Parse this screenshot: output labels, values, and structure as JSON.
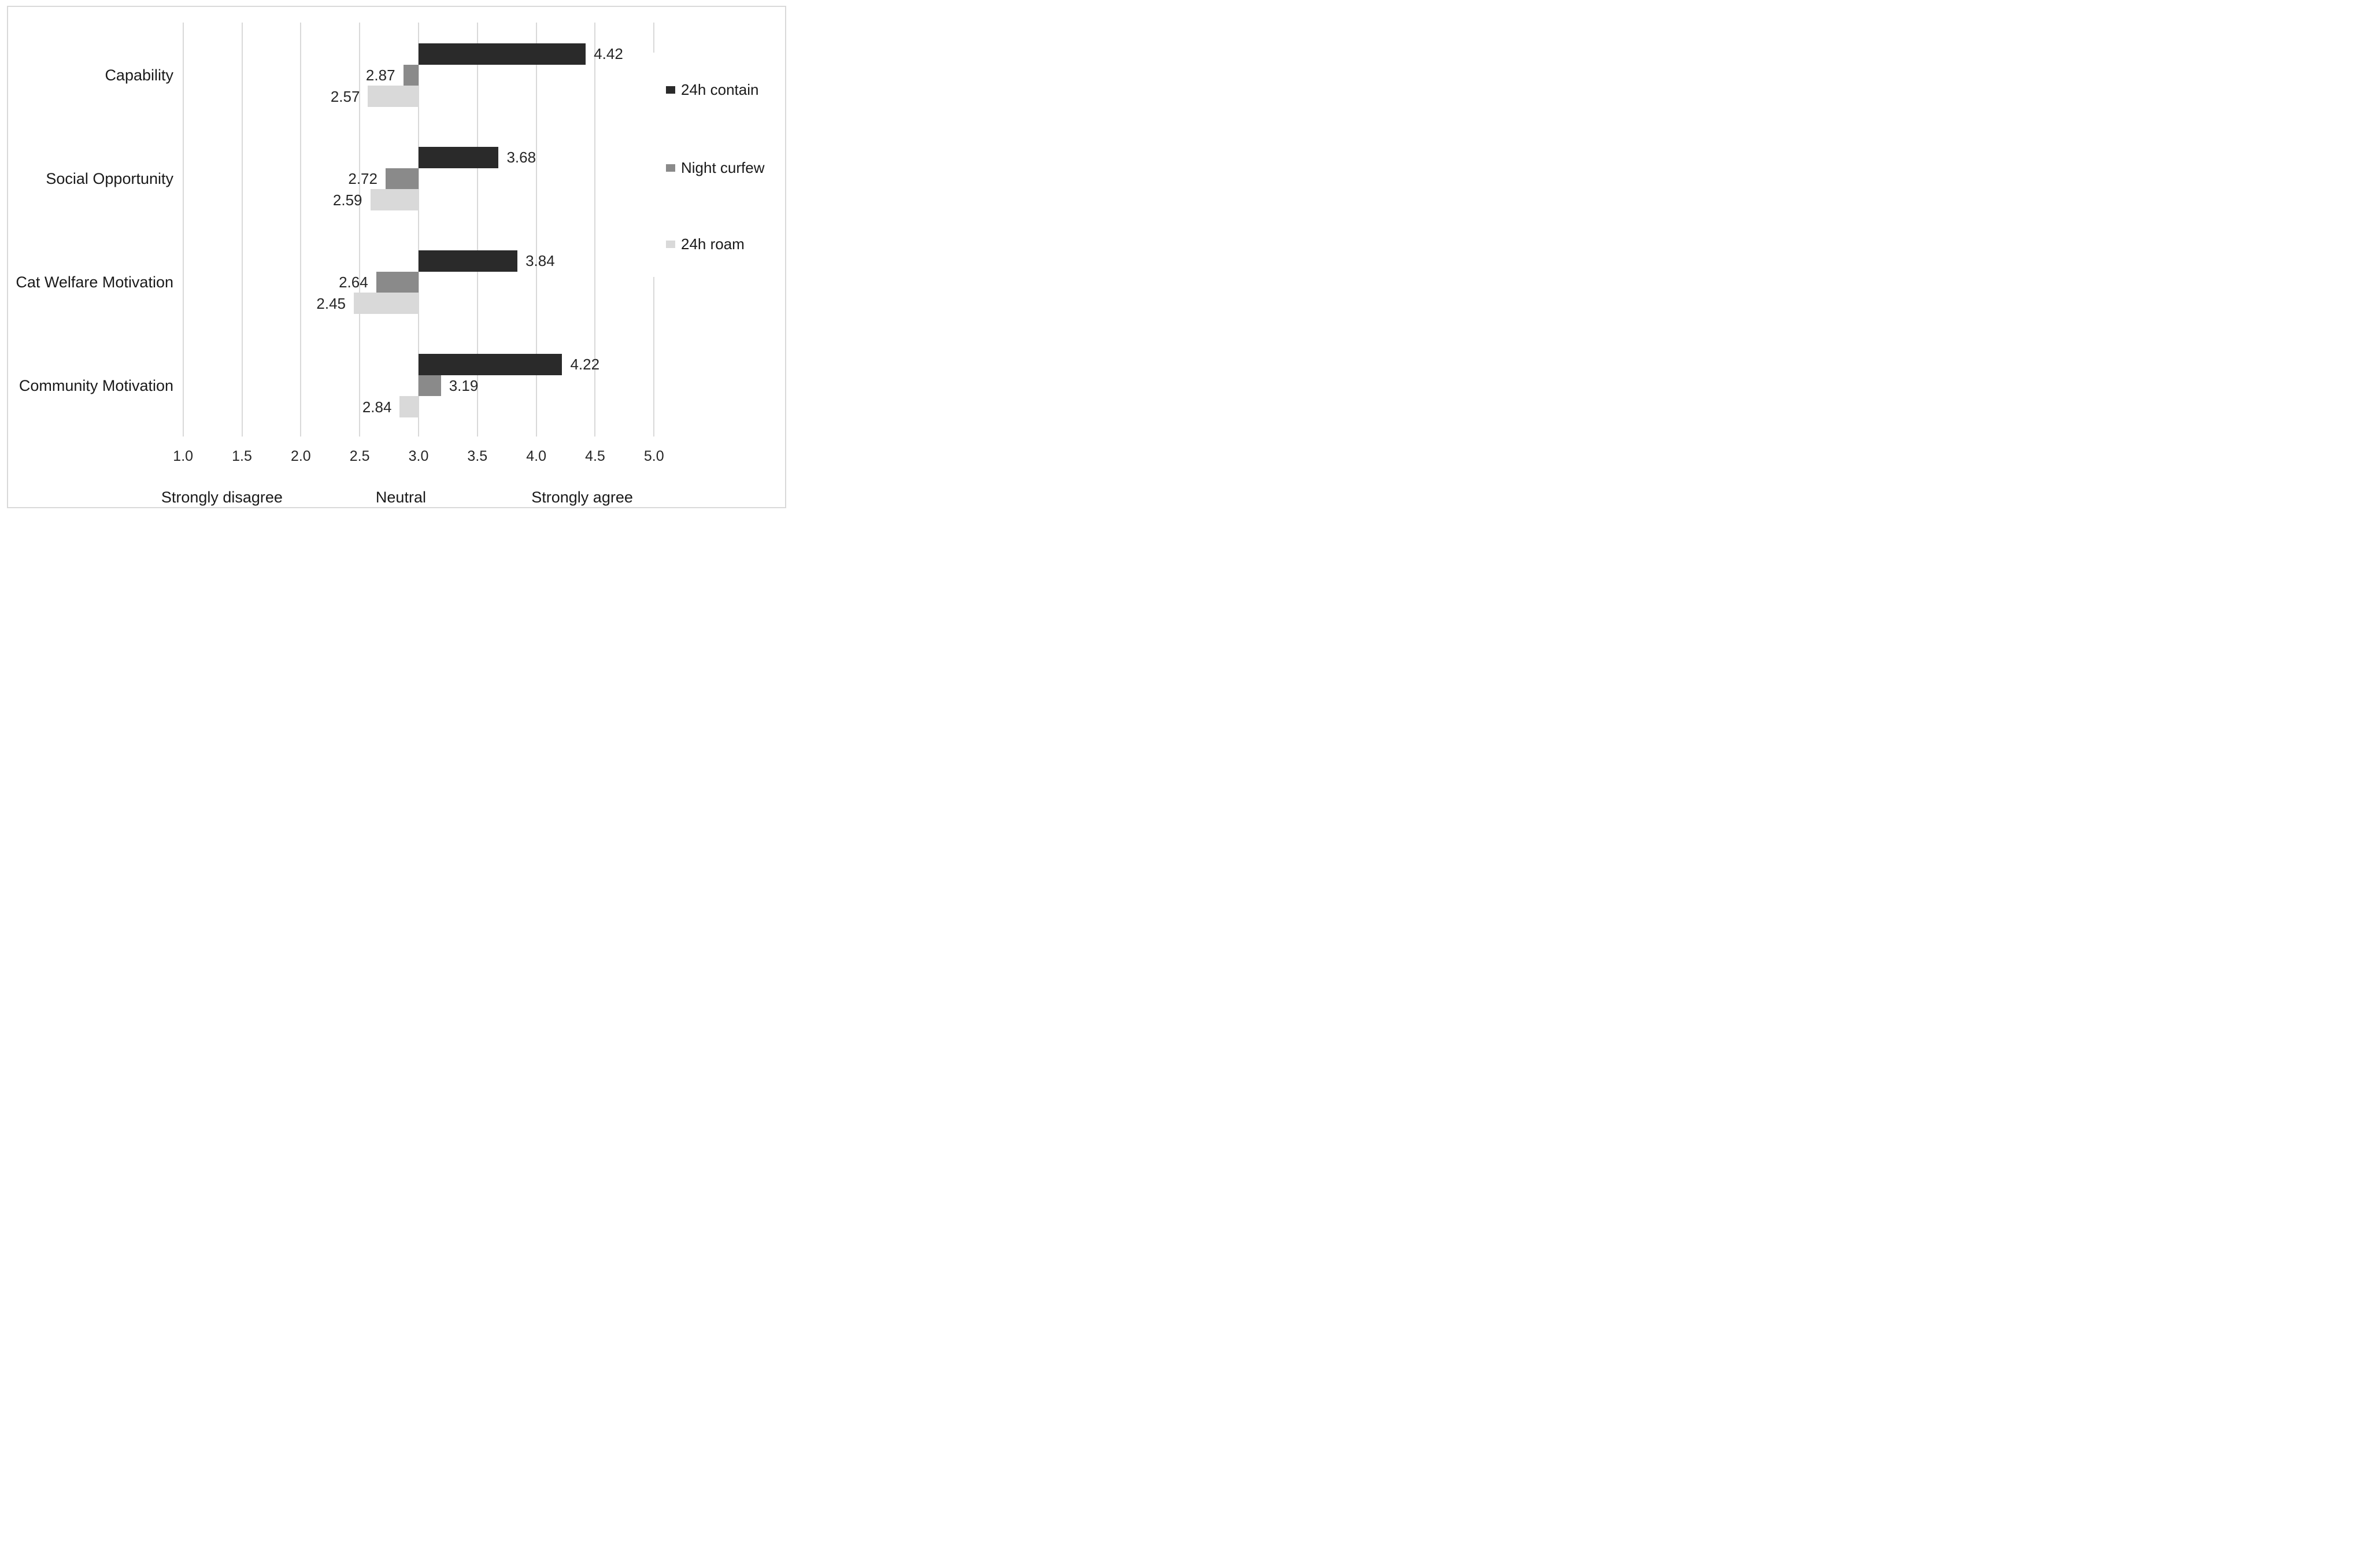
{
  "figure": {
    "background_color": "#ffffff",
    "frame_border_color": "#d9d9d9",
    "text_color": "#262626",
    "gridline_color": "#d9d9d9"
  },
  "chart_data": {
    "type": "bar",
    "orientation": "horizontal",
    "title": "",
    "xlabel": "",
    "ylabel": "",
    "categories": [
      "Capability",
      "Social Opportunity",
      "Cat Welfare Motivation",
      "Community Motivation"
    ],
    "series": [
      {
        "name": "24h contain",
        "color": "#2a2a2a",
        "values": [
          4.42,
          3.68,
          3.84,
          4.22
        ]
      },
      {
        "name": "Night curfew",
        "color": "#8a8a8a",
        "values": [
          2.87,
          2.72,
          2.64,
          3.19
        ]
      },
      {
        "name": "24h roam",
        "color": "#d9d9d9",
        "values": [
          2.57,
          2.59,
          2.45,
          2.84
        ]
      }
    ],
    "bar_base_value": 3.0,
    "data_labels_shown": true,
    "data_label_decimals": 2,
    "x_axis": {
      "min": 1.0,
      "max": 5.0,
      "tick_step": 0.5,
      "tick_labels": [
        "1.0",
        "1.5",
        "2.0",
        "2.5",
        "3.0",
        "3.5",
        "4.0",
        "4.5",
        "5.0"
      ]
    },
    "x_axis_annotations": [
      {
        "label": "Strongly disagree",
        "x": 1.33
      },
      {
        "label": "Neutral",
        "x": 2.85
      },
      {
        "label": "Strongly agree",
        "x": 4.39
      }
    ],
    "grid": true,
    "legend": {
      "position": "right",
      "items": [
        "24h contain",
        "Night curfew",
        "24h roam"
      ]
    }
  }
}
